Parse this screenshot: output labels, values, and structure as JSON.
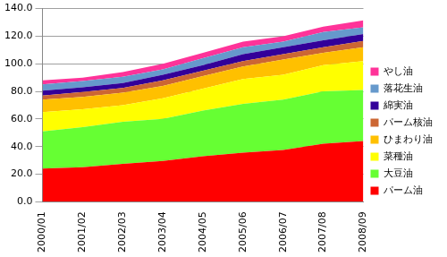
{
  "chart_data": {
    "type": "area",
    "stacked": true,
    "grid": true,
    "legend": "right",
    "categories": [
      "2000/01",
      "2001/02",
      "2002/03",
      "2003/04",
      "2004/05",
      "2005/06",
      "2006/07",
      "2007/08",
      "2008/09"
    ],
    "ylim": [
      0,
      140
    ],
    "yticks": [
      {
        "value": 0,
        "label": "0.0"
      },
      {
        "value": 20,
        "label": "20.0"
      },
      {
        "value": 40,
        "label": "40.0"
      },
      {
        "value": 60,
        "label": "60.0"
      },
      {
        "value": 80,
        "label": "80.0"
      },
      {
        "value": 100,
        "label": "100.0"
      },
      {
        "value": 120,
        "label": "120.0"
      },
      {
        "value": 140,
        "label": "140.0"
      }
    ],
    "series": [
      {
        "name": "パーム油",
        "color": "#ff0000",
        "values": [
          24,
          25,
          27.5,
          29.5,
          33,
          35.5,
          37.5,
          42,
          44
        ]
      },
      {
        "name": "大豆油",
        "color": "#66ff33",
        "values": [
          27,
          29,
          30.5,
          30.5,
          33,
          35.5,
          36.5,
          38,
          37
        ]
      },
      {
        "name": "菜種油",
        "color": "#ffff00",
        "values": [
          14,
          13,
          12,
          15,
          16,
          18,
          18,
          19,
          21
        ]
      },
      {
        "name": "ひまわり油",
        "color": "#ffc000",
        "values": [
          9,
          9,
          9,
          9,
          9,
          9,
          11,
          9,
          10
        ]
      },
      {
        "name": "パーム核油",
        "color": "#cc6633",
        "values": [
          3,
          3.5,
          3.5,
          4,
          4,
          4,
          4,
          4,
          4.5
        ]
      },
      {
        "name": "綿実油",
        "color": "#330099",
        "values": [
          3.5,
          3.5,
          3.5,
          4,
          4,
          5,
          5,
          5,
          5
        ]
      },
      {
        "name": "落花生油",
        "color": "#6699cc",
        "values": [
          4.5,
          4.5,
          4.5,
          4,
          5,
          5,
          4,
          6,
          5
        ]
      },
      {
        "name": "やし油",
        "color": "#ff3399",
        "values": [
          3,
          2.5,
          3.5,
          4,
          4,
          4,
          4,
          4,
          5
        ]
      }
    ]
  }
}
